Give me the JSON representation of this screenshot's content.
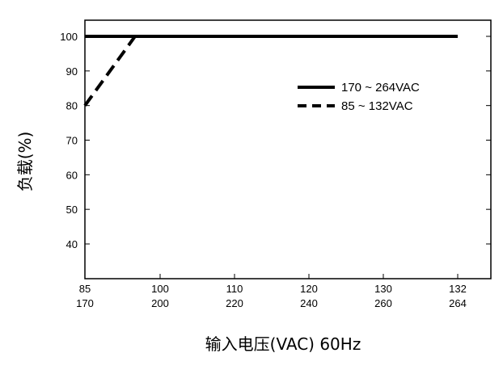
{
  "chart_data": {
    "type": "line",
    "title": "",
    "xlabel": "输入电压(VAC) 60Hz",
    "ylabel": "负载(%)",
    "xlim": [
      85,
      132
    ],
    "ylim": [
      30,
      100
    ],
    "yticks": [
      40,
      50,
      60,
      70,
      80,
      90,
      100
    ],
    "xticks": [
      {
        "value": 85,
        "top": "85",
        "bottom": "170"
      },
      {
        "value": 100,
        "top": "100",
        "bottom": "200"
      },
      {
        "value": 110,
        "top": "110",
        "bottom": "220"
      },
      {
        "value": 120,
        "top": "120",
        "bottom": "240"
      },
      {
        "value": 130,
        "top": "130",
        "bottom": "260"
      },
      {
        "value": 132,
        "top": "132",
        "bottom": "264"
      }
    ],
    "series": [
      {
        "name": "170 ~ 264VAC",
        "style": "solid",
        "color": "#000000",
        "x": [
          85,
          132
        ],
        "y": [
          100,
          100
        ]
      },
      {
        "name": "85 ~ 132VAC",
        "style": "dashed",
        "color": "#000000",
        "x": [
          85,
          95,
          132
        ],
        "y": [
          80,
          100,
          100
        ]
      }
    ],
    "grid": false,
    "legend": "upper-right"
  }
}
